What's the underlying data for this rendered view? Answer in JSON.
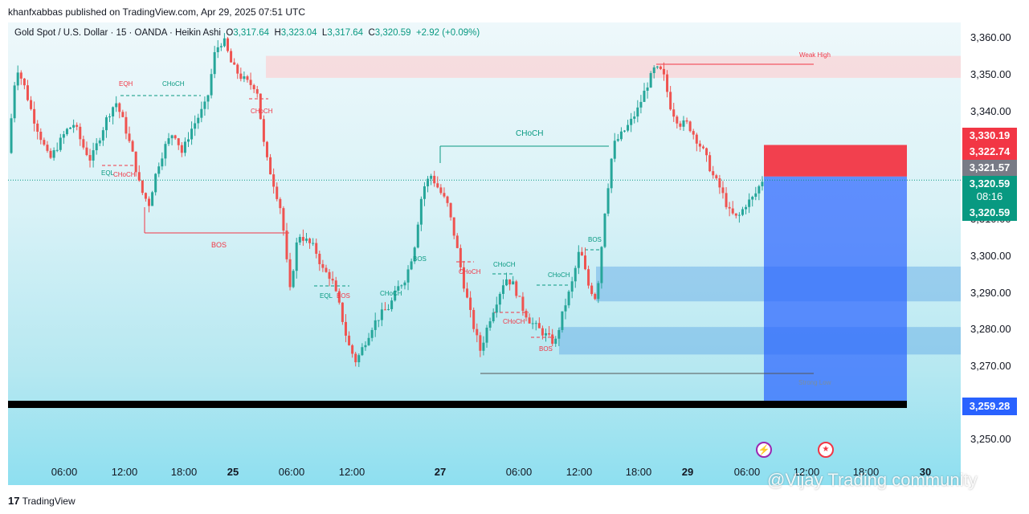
{
  "publisher_line": "khanfxabbas published on TradingView.com, Apr 29, 2025 07:51 UTC",
  "legend": {
    "symbol": "Gold Spot / U.S. Dollar · 15 · OANDA · Heikin Ashi",
    "o_label": "O",
    "o": "3,317.64",
    "h_label": "H",
    "h": "3,323.04",
    "l_label": "L",
    "l": "3,317.64",
    "c_label": "C",
    "c": "3,320.59",
    "change": "+2.92 (+0.09%)"
  },
  "colors": {
    "up": "#26a69a",
    "down": "#ef5350",
    "zone_red": "#f23645",
    "zone_blue": "#2962ff",
    "supply": "#f7d9dc"
  },
  "price_badges": {
    "b1": "3,330.19",
    "b2": "3,322.74",
    "b3": "3,321.57",
    "b4": "3,320.59",
    "b4_time": "08:16",
    "b5": "3,320.59",
    "b6": "3,259.28"
  },
  "annotations": {
    "eqh": "EQH",
    "choch_1": "CHoCH",
    "choch_2": "CHoCH",
    "eql_1": "EQL",
    "choch_3": "CHoCH",
    "bos_1": "BOS",
    "eql_2": "EQL",
    "bos_2": "BOS",
    "choch_4": "CHoCH",
    "bos_3": "BOS",
    "choch_big": "CHoCH",
    "choch_5": "CHoCH",
    "choch_6": "CHoCH",
    "choch_7": "CHoCH",
    "choch_8": "CHoCH",
    "bos_4": "BOS",
    "bos_5": "BOS",
    "weak_high": "Weak High",
    "strong_low": "Strong Low"
  },
  "watermark": "@Vijay Trading community",
  "footer_logo": "TradingView",
  "chart_data": {
    "type": "candlestick",
    "style": "Heikin Ashi",
    "interval": "15",
    "y_ticks": [
      3360,
      3350,
      3340,
      3330,
      3320,
      3310,
      3300,
      3290,
      3280,
      3270,
      3260,
      3250
    ],
    "y_tick_labels": [
      "3,360.00",
      "3,350.00",
      "3,340.00",
      "3,330.00",
      "3,320.00",
      "3,310.00",
      "3,300.00",
      "3,290.00",
      "3,280.00",
      "3,270.00",
      "3,260.00",
      "3,250.00"
    ],
    "ylim": [
      3240,
      3367
    ],
    "x_ticks": [
      "06:00",
      "12:00",
      "18:00",
      "25",
      "06:00",
      "12:00",
      "27",
      "06:00",
      "12:00",
      "18:00",
      "29",
      "06:00",
      "12:00",
      "18:00",
      "30"
    ],
    "x_ticks_bold": [
      false,
      false,
      false,
      true,
      false,
      false,
      true,
      false,
      false,
      false,
      true,
      false,
      false,
      false,
      true
    ],
    "price_path": [
      3328,
      3352,
      3346,
      3338,
      3332,
      3326,
      3330,
      3334,
      3336,
      3330,
      3326,
      3332,
      3338,
      3342,
      3336,
      3328,
      3318,
      3314,
      3324,
      3330,
      3334,
      3328,
      3334,
      3338,
      3342,
      3356,
      3359,
      3352,
      3349,
      3347,
      3346,
      3328,
      3320,
      3312,
      3290,
      3306,
      3304,
      3302,
      3296,
      3294,
      3286,
      3276,
      3271,
      3276,
      3281,
      3284,
      3286,
      3291,
      3294,
      3302,
      3318,
      3322,
      3318,
      3314,
      3304,
      3292,
      3282,
      3274,
      3282,
      3288,
      3294,
      3292,
      3286,
      3282,
      3280,
      3278,
      3276,
      3285,
      3292,
      3302,
      3292,
      3288,
      3312,
      3330,
      3333,
      3336,
      3340,
      3346,
      3351,
      3350,
      3340,
      3336,
      3336,
      3332,
      3328,
      3322,
      3318,
      3312,
      3310,
      3314,
      3316,
      3320.59
    ],
    "last": {
      "open": 3317.64,
      "high": 3323.04,
      "low": 3317.64,
      "close": 3320.59
    },
    "zones": [
      {
        "kind": "supply",
        "from": 3348.5,
        "to": 3354.5
      },
      {
        "kind": "demand",
        "from": 3287.5,
        "to": 3297
      },
      {
        "kind": "demand",
        "from": 3273,
        "to": 3280.5
      },
      {
        "kind": "position_stop",
        "from": 3321.57,
        "to": 3330.19
      },
      {
        "kind": "position_target",
        "from": 3259.28,
        "to": 3321.57
      }
    ]
  }
}
